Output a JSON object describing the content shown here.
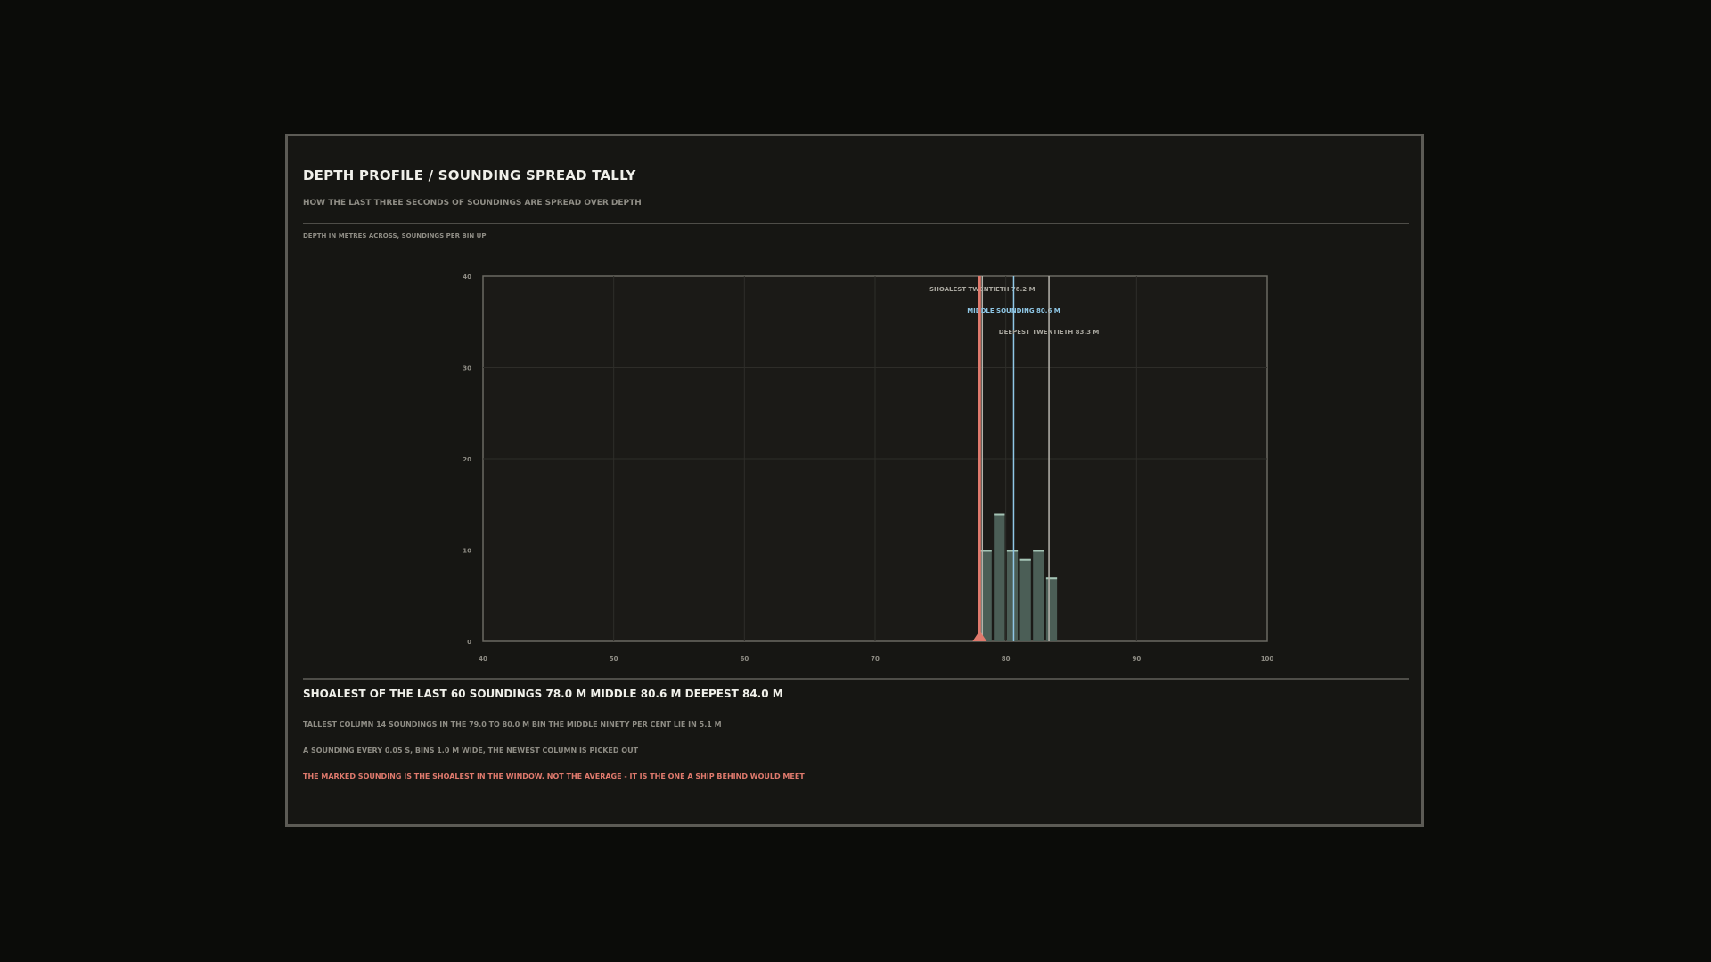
{
  "panel": {
    "title": "DEPTH PROFILE / SOUNDING SPREAD TALLY",
    "subtitle": "HOW THE LAST THREE SECONDS OF SOUNDINGS ARE SPREAD OVER DEPTH",
    "axis_note": "DEPTH IN METRES ACROSS, SOUNDINGS PER BIN UP"
  },
  "chart_data": {
    "type": "bar",
    "xlabel": "",
    "ylabel": "",
    "xlim": [
      40,
      100
    ],
    "ylim": [
      0,
      40
    ],
    "x_ticks": [
      "40",
      "50",
      "60",
      "70",
      "80",
      "90",
      "100"
    ],
    "y_ticks": [
      "0",
      "10",
      "20",
      "30",
      "40"
    ],
    "grid": true,
    "bins": [
      {
        "x0": 78,
        "x1": 79,
        "value": 10
      },
      {
        "x0": 79,
        "x1": 80,
        "value": 14
      },
      {
        "x0": 80,
        "x1": 81,
        "value": 10
      },
      {
        "x0": 81,
        "x1": 82,
        "value": 9
      },
      {
        "x0": 82,
        "x1": 83,
        "value": 10
      },
      {
        "x0": 83,
        "x1": 84,
        "value": 7
      }
    ],
    "markers": [
      {
        "label": "SHOALEST TWENTIETH  78.2 M",
        "x": 78.2
      },
      {
        "label": "MIDDLE SOUNDING  80.6 M",
        "x": 80.6
      },
      {
        "label": "DEEPEST TWENTIETH  83.3 M",
        "x": 83.3
      }
    ],
    "highlight": {
      "x": 78.0
    }
  },
  "stats": {
    "line": "SHOALEST OF THE LAST 60 SOUNDINGS  78.0 M   MIDDLE  80.6 M   DEEPEST  84.0 M"
  },
  "notes": {
    "line1": "TALLEST COLUMN 14 SOUNDINGS IN THE 79.0 TO 80.0 M BIN   THE MIDDLE NINETY PER CENT LIE IN  5.1 M",
    "line2": "A SOUNDING EVERY 0.05 S, BINS 1.0 M WIDE, THE NEWEST COLUMN IS PICKED OUT",
    "warning": "THE MARKED SOUNDING IS THE SHOALEST IN THE WINDOW, NOT THE AVERAGE - IT IS THE ONE A SHIP BEHIND WOULD MEET"
  },
  "colors": {
    "bar": "#4b5e56",
    "bar_top": "#a5c4b5",
    "shoal": "#e07a6d",
    "middle": "#8fc7e6",
    "deep": "#b5b3ab"
  }
}
